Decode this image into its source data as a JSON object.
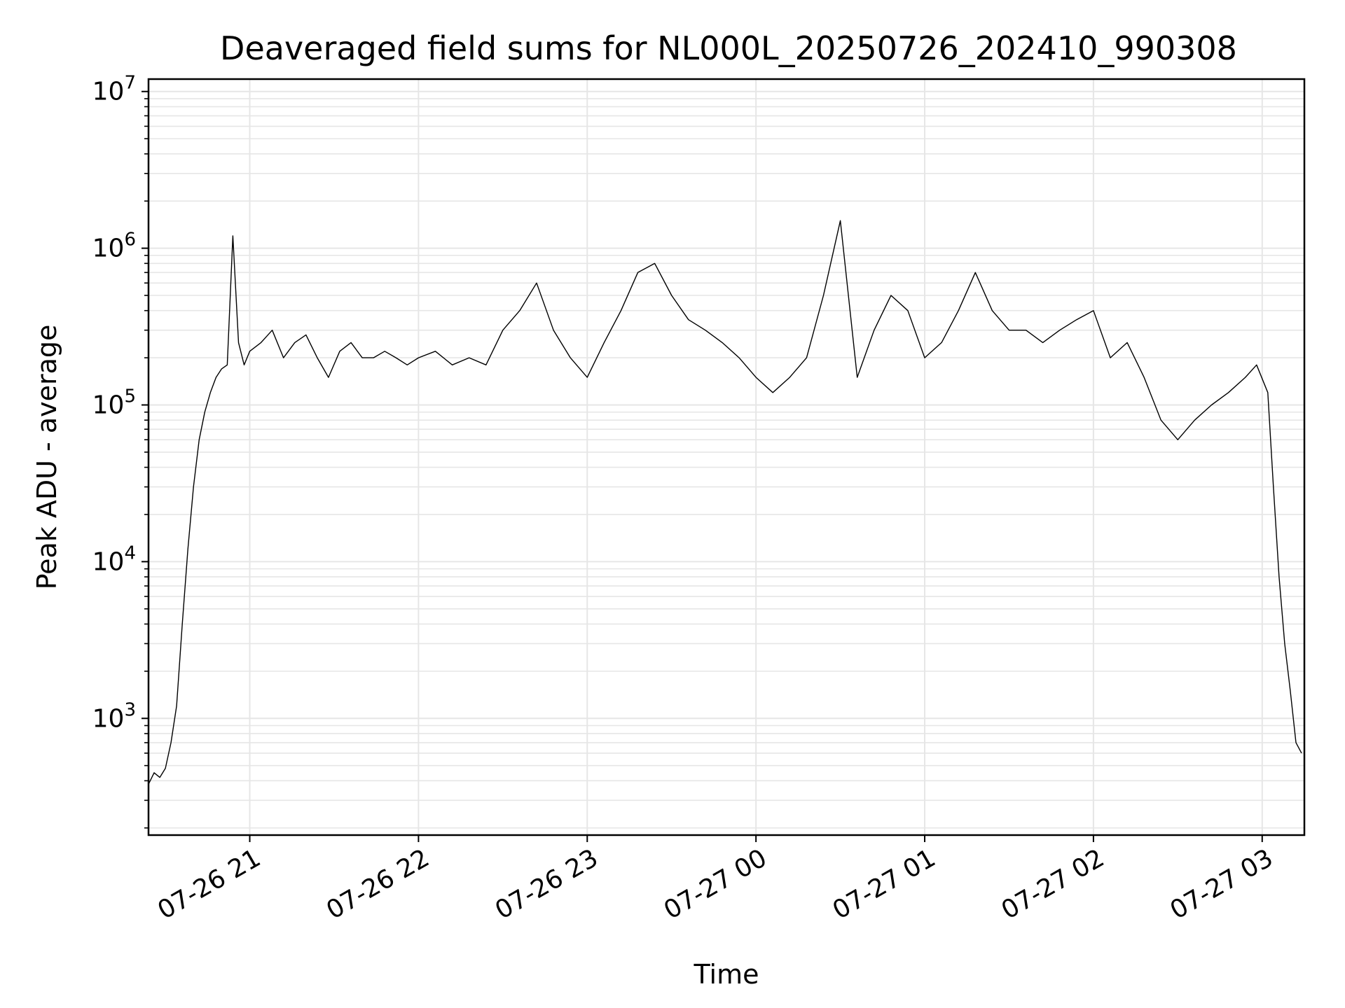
{
  "chart_data": {
    "type": "line",
    "title": "Deaveraged field sums for NL000L_20250726_202410_990308",
    "xlabel": "Time",
    "ylabel": "Peak ADU - average",
    "yscale": "log",
    "ylim": [
      180,
      12000000
    ],
    "xlim": [
      "2025-07-26 20:24",
      "2025-07-27 03:15"
    ],
    "x_ticks": [
      {
        "time": "2025-07-26 21:00",
        "label": "07-26 21"
      },
      {
        "time": "2025-07-26 22:00",
        "label": "07-26 22"
      },
      {
        "time": "2025-07-26 23:00",
        "label": "07-26 23"
      },
      {
        "time": "2025-07-27 00:00",
        "label": "07-27 00"
      },
      {
        "time": "2025-07-27 01:00",
        "label": "07-27 01"
      },
      {
        "time": "2025-07-27 02:00",
        "label": "07-27 02"
      },
      {
        "time": "2025-07-27 03:00",
        "label": "07-27 03"
      }
    ],
    "y_ticks": [
      {
        "value": 1000,
        "base": "10",
        "exp": "3"
      },
      {
        "value": 10000,
        "base": "10",
        "exp": "4"
      },
      {
        "value": 100000,
        "base": "10",
        "exp": "5"
      },
      {
        "value": 1000000,
        "base": "10",
        "exp": "6"
      },
      {
        "value": 10000000,
        "base": "10",
        "exp": "7"
      }
    ],
    "grid": true,
    "grid_minor": true,
    "line_color": "#000000",
    "grid_color": "#e6e6e6",
    "series": [
      {
        "x": [
          "2025-07-26 20:24",
          "2025-07-26 20:26",
          "2025-07-26 20:28",
          "2025-07-26 20:30",
          "2025-07-26 20:32",
          "2025-07-26 20:34",
          "2025-07-26 20:36",
          "2025-07-26 20:38",
          "2025-07-26 20:40",
          "2025-07-26 20:42",
          "2025-07-26 20:44",
          "2025-07-26 20:46",
          "2025-07-26 20:48",
          "2025-07-26 20:50",
          "2025-07-26 20:52",
          "2025-07-26 20:54",
          "2025-07-26 20:56",
          "2025-07-26 20:58",
          "2025-07-26 21:00",
          "2025-07-26 21:04",
          "2025-07-26 21:08",
          "2025-07-26 21:12",
          "2025-07-26 21:16",
          "2025-07-26 21:20",
          "2025-07-26 21:24",
          "2025-07-26 21:28",
          "2025-07-26 21:32",
          "2025-07-26 21:36",
          "2025-07-26 21:40",
          "2025-07-26 21:44",
          "2025-07-26 21:48",
          "2025-07-26 21:52",
          "2025-07-26 21:56",
          "2025-07-26 22:00",
          "2025-07-26 22:06",
          "2025-07-26 22:12",
          "2025-07-26 22:18",
          "2025-07-26 22:24",
          "2025-07-26 22:30",
          "2025-07-26 22:36",
          "2025-07-26 22:42",
          "2025-07-26 22:48",
          "2025-07-26 22:54",
          "2025-07-26 23:00",
          "2025-07-26 23:06",
          "2025-07-26 23:12",
          "2025-07-26 23:18",
          "2025-07-26 23:24",
          "2025-07-26 23:30",
          "2025-07-26 23:36",
          "2025-07-26 23:42",
          "2025-07-26 23:48",
          "2025-07-26 23:54",
          "2025-07-27 00:00",
          "2025-07-27 00:06",
          "2025-07-27 00:12",
          "2025-07-27 00:18",
          "2025-07-27 00:24",
          "2025-07-27 00:30",
          "2025-07-27 00:36",
          "2025-07-27 00:42",
          "2025-07-27 00:48",
          "2025-07-27 00:54",
          "2025-07-27 01:00",
          "2025-07-27 01:06",
          "2025-07-27 01:12",
          "2025-07-27 01:18",
          "2025-07-27 01:24",
          "2025-07-27 01:30",
          "2025-07-27 01:36",
          "2025-07-27 01:42",
          "2025-07-27 01:48",
          "2025-07-27 01:54",
          "2025-07-27 02:00",
          "2025-07-27 02:06",
          "2025-07-27 02:12",
          "2025-07-27 02:18",
          "2025-07-27 02:24",
          "2025-07-27 02:30",
          "2025-07-27 02:36",
          "2025-07-27 02:42",
          "2025-07-27 02:48",
          "2025-07-27 02:54",
          "2025-07-27 02:58",
          "2025-07-27 03:02",
          "2025-07-27 03:04",
          "2025-07-27 03:06",
          "2025-07-27 03:08",
          "2025-07-27 03:10",
          "2025-07-27 03:12",
          "2025-07-27 03:14"
        ],
        "y": [
          380,
          450,
          420,
          480,
          700,
          1200,
          4000,
          12000,
          30000,
          60000,
          90000,
          120000,
          150000,
          170000,
          180000,
          1200000,
          250000,
          180000,
          220000,
          250000,
          300000,
          200000,
          250000,
          280000,
          200000,
          150000,
          220000,
          250000,
          200000,
          200000,
          220000,
          200000,
          180000,
          200000,
          220000,
          180000,
          200000,
          180000,
          300000,
          400000,
          600000,
          300000,
          200000,
          150000,
          250000,
          400000,
          700000,
          800000,
          500000,
          350000,
          300000,
          250000,
          200000,
          150000,
          120000,
          150000,
          200000,
          500000,
          1500000,
          150000,
          300000,
          500000,
          400000,
          200000,
          250000,
          400000,
          700000,
          400000,
          300000,
          300000,
          250000,
          300000,
          350000,
          400000,
          200000,
          250000,
          150000,
          80000,
          60000,
          80000,
          100000,
          120000,
          150000,
          180000,
          120000,
          30000,
          8000,
          3000,
          1500,
          700,
          600
        ]
      }
    ]
  }
}
